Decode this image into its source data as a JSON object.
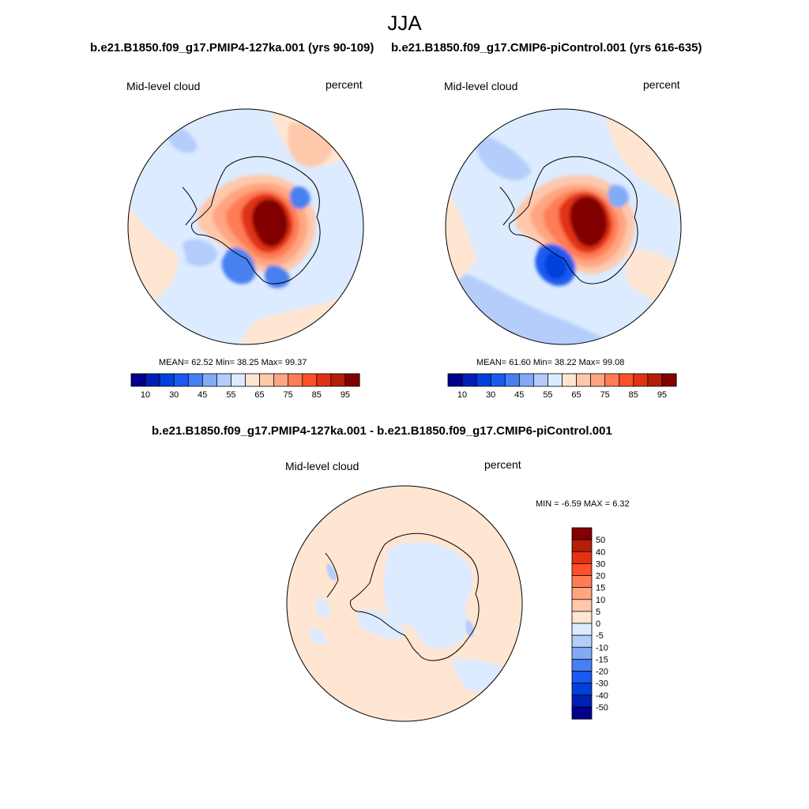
{
  "figure": {
    "title": "JJA"
  },
  "chart_data": [
    {
      "type": "heatmap",
      "projection": "south-polar-stereographic",
      "title": "b.e21.B1850.f09_g17.PMIP4-127ka.001 (yrs 90-109)",
      "left_label": "Mid-level cloud",
      "right_label": "percent",
      "stats_text": "MEAN=  62.52  Min=  38.25  Max=  99.37",
      "stats": {
        "mean": 62.52,
        "min": 38.25,
        "max": 99.37
      },
      "colorbar": {
        "orientation": "horizontal",
        "tick_labels": [
          "10",
          "30",
          "45",
          "55",
          "65",
          "75",
          "85",
          "95"
        ],
        "colors": [
          "#00008c",
          "#0020b4",
          "#0040dc",
          "#1a5af0",
          "#4680f0",
          "#82aaf5",
          "#b4cdfa",
          "#dcebff",
          "#ffe6d2",
          "#ffc8aa",
          "#ffa582",
          "#ff7d55",
          "#ff5028",
          "#e13214",
          "#b41e0a",
          "#820000"
        ]
      },
      "colors": {
        "land_contour": "#000000",
        "ocean_fill": "#dcebff"
      }
    },
    {
      "type": "heatmap",
      "projection": "south-polar-stereographic",
      "title": "b.e21.B1850.f09_g17.CMIP6-piControl.001 (yrs 616-635)",
      "left_label": "Mid-level cloud",
      "right_label": "percent",
      "stats_text": "MEAN=  61.60  Min=  38.22  Max=  99.08",
      "stats": {
        "mean": 61.6,
        "min": 38.22,
        "max": 99.08
      },
      "colorbar": {
        "orientation": "horizontal",
        "tick_labels": [
          "10",
          "30",
          "45",
          "55",
          "65",
          "75",
          "85",
          "95"
        ],
        "colors": [
          "#00008c",
          "#0020b4",
          "#0040dc",
          "#1a5af0",
          "#4680f0",
          "#82aaf5",
          "#b4cdfa",
          "#dcebff",
          "#ffe6d2",
          "#ffc8aa",
          "#ffa582",
          "#ff7d55",
          "#ff5028",
          "#e13214",
          "#b41e0a",
          "#820000"
        ]
      },
      "colors": {
        "land_contour": "#000000",
        "ocean_fill": "#dcebff"
      }
    },
    {
      "type": "heatmap",
      "projection": "south-polar-stereographic",
      "title": "b.e21.B1850.f09_g17.PMIP4-127ka.001 - b.e21.B1850.f09_g17.CMIP6-piControl.001",
      "left_label": "Mid-level cloud",
      "right_label": "percent",
      "stats_text": "MIN =  -6.59 MAX =   6.32",
      "stats": {
        "min": -6.59,
        "max": 6.32
      },
      "colorbar": {
        "orientation": "vertical",
        "tick_labels": [
          "50",
          "40",
          "30",
          "20",
          "15",
          "10",
          "5",
          "0",
          "-5",
          "-10",
          "-15",
          "-20",
          "-30",
          "-40",
          "-50"
        ],
        "colors": [
          "#820000",
          "#b41e0a",
          "#e13214",
          "#ff5028",
          "#ff7d55",
          "#ffa582",
          "#ffc8aa",
          "#ffe6d2",
          "#dcebff",
          "#b4cdfa",
          "#82aaf5",
          "#4680f0",
          "#1a5af0",
          "#0040dc",
          "#0020b4",
          "#00008c"
        ]
      },
      "colors": {
        "land_contour": "#000000",
        "ocean_fill": "#ffe6d2"
      }
    }
  ]
}
